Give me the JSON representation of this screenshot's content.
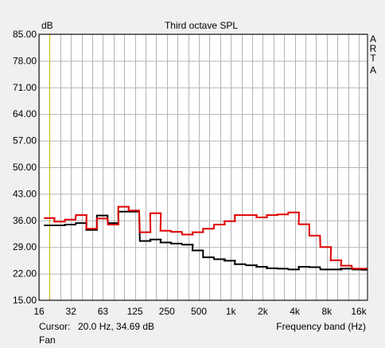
{
  "window": {
    "title": "Third octave SPL",
    "brand": [
      "A",
      "R",
      "T",
      "A"
    ]
  },
  "status": {
    "cursor_label": "Cursor:",
    "cursor_value": "20.0 Hz, 34.69 dB",
    "x_axis_label": "Frequency band (Hz)",
    "mode": "Fan"
  },
  "colors": {
    "background": "#f0f0f0",
    "plot_area": "#ffffff",
    "grid": "#b4b4b4",
    "cursor": "#c8b400",
    "series_red": "#e00000",
    "series_black": "#000000"
  },
  "chart_data": {
    "type": "line",
    "title": "Third octave SPL",
    "ylabel": "dB",
    "xlabel": "Frequency band (Hz)",
    "y_scale": "linear",
    "x_scale": "third-octave bands (log)",
    "ylim": [
      15.0,
      85.0
    ],
    "y_ticks": [
      "85.00",
      "78.00",
      "71.00",
      "64.00",
      "57.00",
      "50.00",
      "43.00",
      "36.00",
      "29.00",
      "22.00",
      "15.00"
    ],
    "x_tick_labels": [
      "16",
      "32",
      "63",
      "125",
      "250",
      "500",
      "1k",
      "2k",
      "4k",
      "8k",
      "16k"
    ],
    "grid": true,
    "cursor_hz": 20.0,
    "bands_hz": [
      20,
      25,
      31.5,
      40,
      50,
      63,
      80,
      100,
      125,
      160,
      200,
      250,
      315,
      400,
      500,
      630,
      800,
      1000,
      1250,
      1600,
      2000,
      2500,
      3150,
      4000,
      5000,
      6300,
      8000,
      10000,
      12500,
      16000,
      20000
    ],
    "series": [
      {
        "color": "#e00000",
        "values": [
          36.6,
          35.7,
          36.2,
          37.4,
          33.8,
          36.5,
          34.9,
          39.6,
          38.6,
          32.9,
          37.9,
          33.3,
          33.0,
          32.3,
          32.9,
          33.8,
          34.9,
          35.8,
          37.4,
          37.4,
          36.8,
          37.4,
          37.6,
          38.1,
          35.0,
          32.0,
          29.0,
          25.5,
          24.1,
          23.3,
          23.3
        ]
      },
      {
        "color": "#000000",
        "values": [
          34.7,
          34.7,
          34.9,
          35.3,
          33.5,
          37.3,
          35.3,
          38.3,
          38.3,
          30.6,
          31.0,
          30.2,
          29.9,
          29.6,
          28.1,
          26.3,
          25.8,
          25.4,
          24.5,
          24.2,
          23.8,
          23.4,
          23.3,
          23.1,
          23.8,
          23.7,
          23.1,
          23.1,
          23.3,
          23.1,
          23.0
        ]
      }
    ]
  }
}
